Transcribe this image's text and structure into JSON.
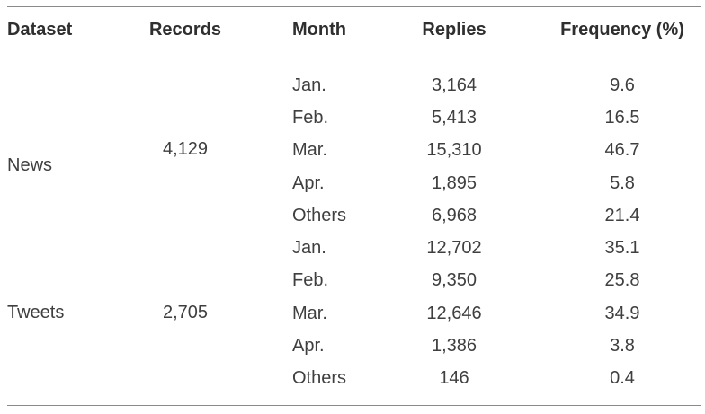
{
  "table": {
    "headers": {
      "dataset": "Dataset",
      "records": "Records",
      "month": "Month",
      "replies": "Replies",
      "frequency": "Frequency (%)"
    },
    "groups": [
      {
        "dataset": "News",
        "records": "4,129",
        "rows": [
          {
            "month": "Jan.",
            "replies": "3,164",
            "frequency": "9.6"
          },
          {
            "month": "Feb.",
            "replies": "5,413",
            "frequency": "16.5"
          },
          {
            "month": "Mar.",
            "replies": "15,310",
            "frequency": "46.7"
          },
          {
            "month": "Apr.",
            "replies": "1,895",
            "frequency": "5.8"
          },
          {
            "month": "Others",
            "replies": "6,968",
            "frequency": "21.4"
          }
        ]
      },
      {
        "dataset": "Tweets",
        "records": "2,705",
        "rows": [
          {
            "month": "Jan.",
            "replies": "12,702",
            "frequency": "35.1"
          },
          {
            "month": "Feb.",
            "replies": "9,350",
            "frequency": "25.8"
          },
          {
            "month": "Mar.",
            "replies": "12,646",
            "frequency": "34.9"
          },
          {
            "month": "Apr.",
            "replies": "1,386",
            "frequency": "3.8"
          },
          {
            "month": "Others",
            "replies": "146",
            "frequency": "0.4"
          }
        ]
      }
    ]
  }
}
